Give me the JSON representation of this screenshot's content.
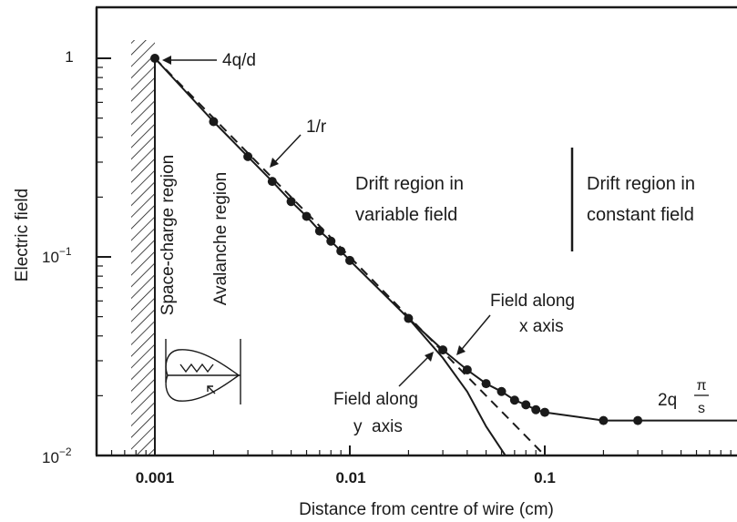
{
  "chart_data": {
    "type": "line",
    "title": "",
    "xlabel": "Distance from centre of wire (cm)",
    "ylabel": "Electric field",
    "x_scale": "log",
    "y_scale": "log",
    "xlim": [
      0.0005,
      1
    ],
    "ylim": [
      0.01,
      1.15
    ],
    "grid": false,
    "x_ticks": [
      {
        "value": 0.001,
        "label": "0.001"
      },
      {
        "value": 0.01,
        "label": "0.01"
      },
      {
        "value": 0.1,
        "label": "0.1"
      }
    ],
    "y_ticks": [
      {
        "value": 1,
        "label": "1",
        "sup": ""
      },
      {
        "value": 0.1,
        "label": "10",
        "sup": "−1"
      },
      {
        "value": 0.01,
        "label": "10",
        "sup": "−2"
      }
    ],
    "series": [
      {
        "style": "solid-with-markers",
        "x": [
          0.001,
          0.002,
          0.003,
          0.004,
          0.005,
          0.006,
          0.007,
          0.008,
          0.009,
          0.01,
          0.02,
          0.03,
          0.04,
          0.05,
          0.06,
          0.07,
          0.08,
          0.09,
          0.1,
          0.2,
          0.3
        ],
        "y": [
          1.0,
          0.48,
          0.32,
          0.24,
          0.19,
          0.16,
          0.135,
          0.12,
          0.107,
          0.096,
          0.049,
          0.034,
          0.027,
          0.023,
          0.021,
          0.019,
          0.018,
          0.017,
          0.0165,
          0.015,
          0.015
        ],
        "line_extends_to": 1
      },
      {
        "style": "dashed",
        "x": [
          0.001,
          0.01,
          0.1
        ],
        "y": [
          1.0,
          0.1,
          0.01
        ]
      },
      {
        "style": "solid",
        "x": [
          0.02,
          0.03,
          0.04,
          0.05,
          0.065
        ],
        "y": [
          0.049,
          0.031,
          0.021,
          0.014,
          0.0095
        ]
      }
    ],
    "annotations": {
      "four_q_d": "4q/d",
      "one_over_r": "1/r",
      "drift_variable_1": "Drift region in",
      "drift_variable_2": "variable field",
      "drift_constant_1": "Drift region in",
      "drift_constant_2": "constant field",
      "space_charge": "Space-charge region",
      "avalanche": "Avalanche region",
      "field_x_1": "Field along",
      "field_x_2": "x axis",
      "field_y_1": "Field along",
      "field_y_2": "y  axis",
      "two_q": "2q",
      "pi": "π",
      "s": "s"
    }
  }
}
